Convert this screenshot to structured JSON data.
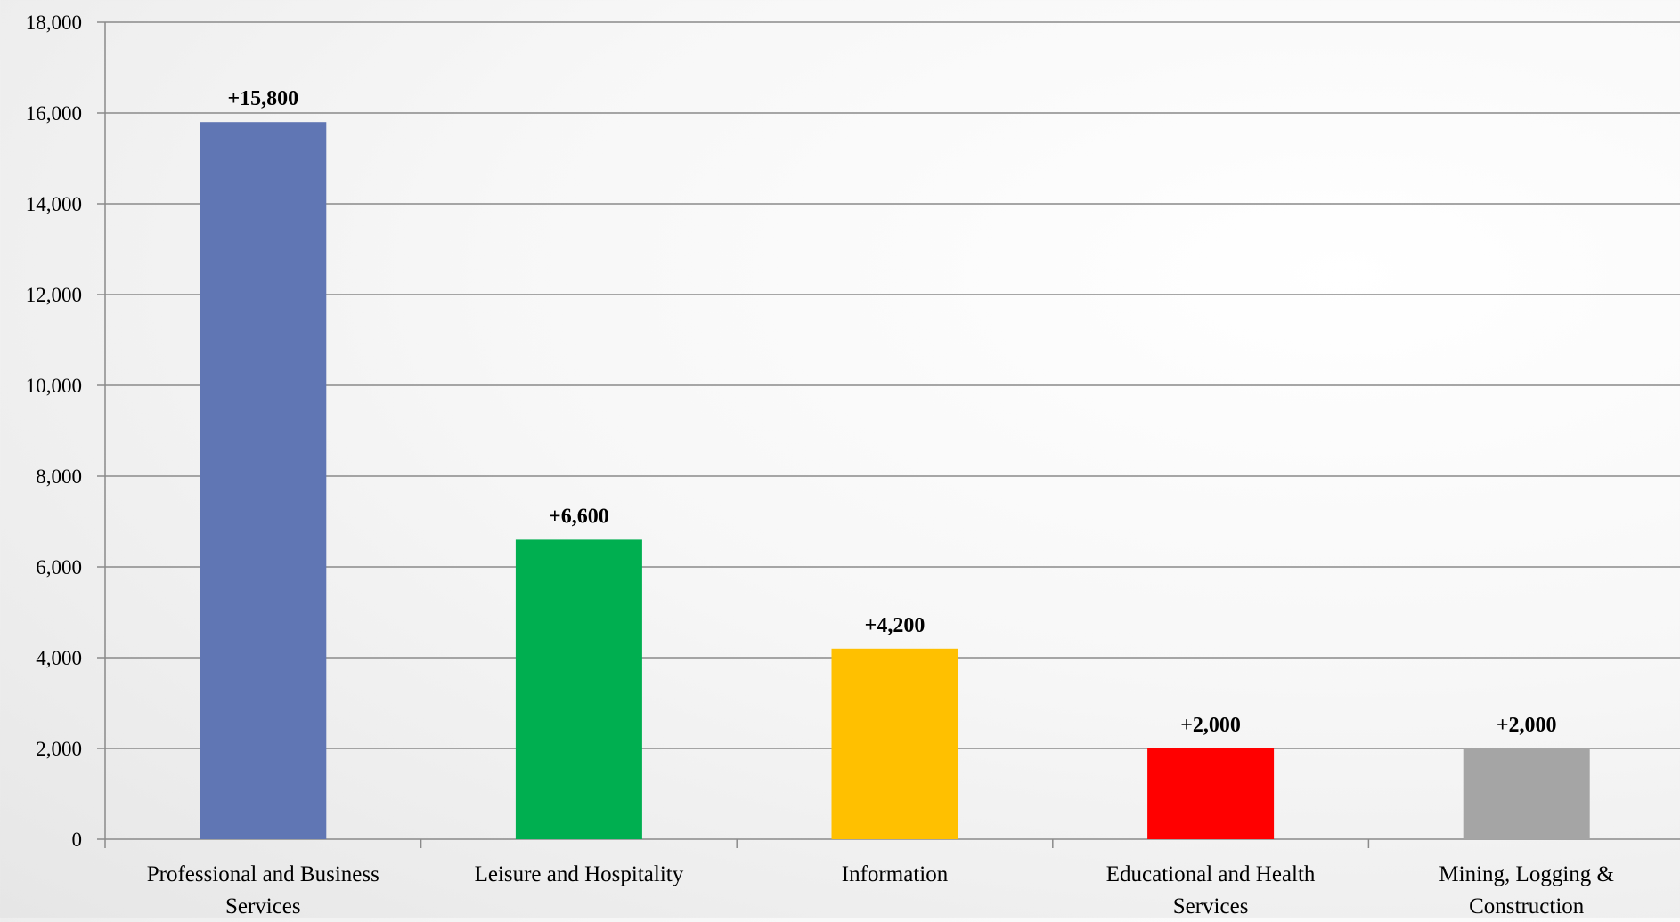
{
  "chart_data": {
    "type": "bar",
    "title": "",
    "xlabel": "",
    "ylabel": "",
    "ylim": [
      0,
      18000
    ],
    "yticks": [
      0,
      2000,
      4000,
      6000,
      8000,
      10000,
      12000,
      14000,
      16000,
      18000
    ],
    "ytick_labels": [
      "0",
      "2,000",
      "4,000",
      "6,000",
      "8,000",
      "10,000",
      "12,000",
      "14,000",
      "16,000",
      "18,000"
    ],
    "grid": true,
    "legend": "none",
    "categories": [
      {
        "label_lines": [
          "Professional and Business",
          "Services"
        ],
        "value": 15800,
        "data_label": "+15,800",
        "color": "#6076B4"
      },
      {
        "label_lines": [
          "Leisure and Hospitality"
        ],
        "value": 6600,
        "data_label": "+6,600",
        "color": "#00AF50"
      },
      {
        "label_lines": [
          "Information"
        ],
        "value": 4200,
        "data_label": "+4,200",
        "color": "#FFC000"
      },
      {
        "label_lines": [
          "Educational and Health",
          "Services"
        ],
        "value": 2000,
        "data_label": "+2,000",
        "color": "#FF0000"
      },
      {
        "label_lines": [
          "Mining, Logging &",
          "Construction"
        ],
        "value": 2000,
        "data_label": "+2,000",
        "color": "#A5A5A5"
      }
    ],
    "colors": {
      "gridline": "#8A8A8A",
      "axis": "#8A8A8A"
    }
  }
}
